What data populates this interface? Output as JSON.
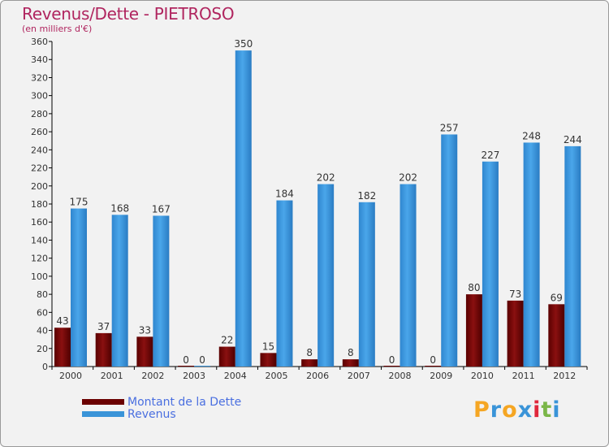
{
  "title": "Revenus/Dette - PIETROSO",
  "subtitle": "(en milliers d'€)",
  "chart_data": {
    "type": "bar",
    "categories": [
      "2000",
      "2001",
      "2002",
      "2003",
      "2004",
      "2005",
      "2006",
      "2007",
      "2008",
      "2009",
      "2010",
      "2011",
      "2012"
    ],
    "series": [
      {
        "name": "Montant de la Dette",
        "color": "#6b0000",
        "values": [
          43,
          37,
          33,
          0,
          22,
          15,
          8,
          8,
          0,
          0,
          80,
          73,
          69
        ]
      },
      {
        "name": "Revenus",
        "color": "#3a94d8",
        "values": [
          175,
          168,
          167,
          0,
          350,
          184,
          202,
          182,
          202,
          257,
          227,
          248,
          244
        ]
      }
    ],
    "ylim": [
      0,
      360
    ],
    "yticks": [
      0,
      20,
      40,
      60,
      80,
      100,
      120,
      140,
      160,
      180,
      200,
      220,
      240,
      260,
      280,
      300,
      320,
      340,
      360
    ],
    "grid": false,
    "legend_position": "bottom-left"
  },
  "legend": {
    "debt_label": "Montant de la Dette",
    "revenue_label": "Revenus"
  },
  "logo": {
    "text": "Proxiti",
    "letters": [
      "P",
      "r",
      "o",
      "x",
      "i",
      "t",
      "i"
    ],
    "colors": [
      "#f5a623",
      "#3a94d8",
      "#f5a623",
      "#3a94d8",
      "#e0283c",
      "#7ab648",
      "#3a94d8"
    ]
  }
}
